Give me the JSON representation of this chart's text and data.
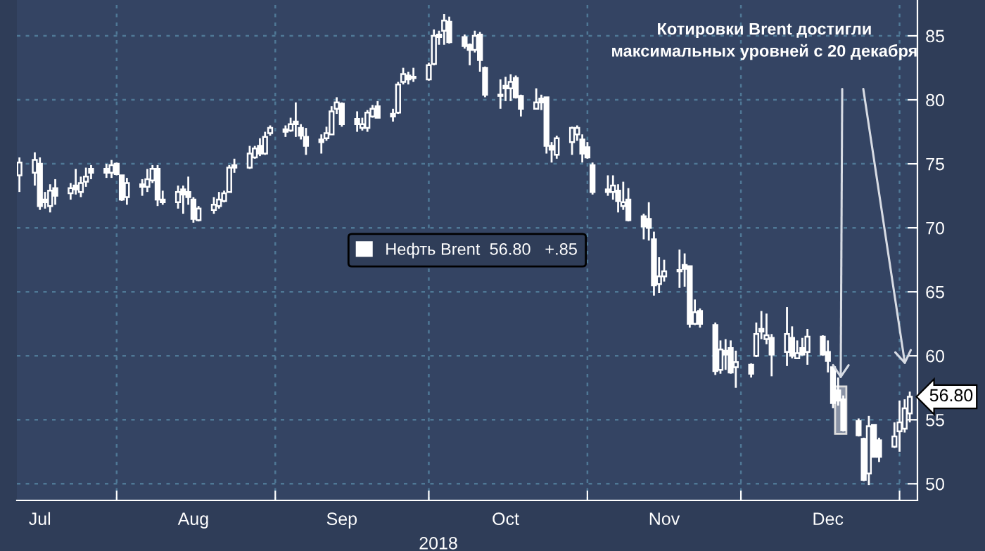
{
  "chart_data": {
    "type": "candlestick",
    "x": [
      "2018-07-13",
      "2018-07-16",
      "2018-07-17",
      "2018-07-18",
      "2018-07-19",
      "2018-07-20",
      "2018-07-23",
      "2018-07-24",
      "2018-07-25",
      "2018-07-26",
      "2018-07-27",
      "2018-07-30",
      "2018-07-31",
      "2018-08-01",
      "2018-08-02",
      "2018-08-03",
      "2018-08-06",
      "2018-08-07",
      "2018-08-08",
      "2018-08-09",
      "2018-08-10",
      "2018-08-13",
      "2018-08-14",
      "2018-08-15",
      "2018-08-16",
      "2018-08-17",
      "2018-08-20",
      "2018-08-21",
      "2018-08-22",
      "2018-08-23",
      "2018-08-24",
      "2018-08-27",
      "2018-08-28",
      "2018-08-29",
      "2018-08-30",
      "2018-08-31",
      "2018-09-03",
      "2018-09-04",
      "2018-09-05",
      "2018-09-06",
      "2018-09-07",
      "2018-09-10",
      "2018-09-11",
      "2018-09-12",
      "2018-09-13",
      "2018-09-14",
      "2018-09-17",
      "2018-09-18",
      "2018-09-19",
      "2018-09-20",
      "2018-09-21",
      "2018-09-24",
      "2018-09-25",
      "2018-09-26",
      "2018-09-27",
      "2018-09-28",
      "2018-10-01",
      "2018-10-02",
      "2018-10-03",
      "2018-10-04",
      "2018-10-05",
      "2018-10-08",
      "2018-10-09",
      "2018-10-10",
      "2018-10-11",
      "2018-10-12",
      "2018-10-15",
      "2018-10-16",
      "2018-10-17",
      "2018-10-18",
      "2018-10-19",
      "2018-10-22",
      "2018-10-23",
      "2018-10-24",
      "2018-10-25",
      "2018-10-26",
      "2018-10-29",
      "2018-10-30",
      "2018-10-31",
      "2018-11-01",
      "2018-11-02",
      "2018-11-05",
      "2018-11-06",
      "2018-11-07",
      "2018-11-08",
      "2018-11-09",
      "2018-11-12",
      "2018-11-13",
      "2018-11-14",
      "2018-11-15",
      "2018-11-16",
      "2018-11-19",
      "2018-11-20",
      "2018-11-21",
      "2018-11-22",
      "2018-11-23",
      "2018-11-26",
      "2018-11-27",
      "2018-11-28",
      "2018-11-29",
      "2018-11-30",
      "2018-12-03",
      "2018-12-04",
      "2018-12-05",
      "2018-12-06",
      "2018-12-07",
      "2018-12-10",
      "2018-12-11",
      "2018-12-12",
      "2018-12-13",
      "2018-12-14",
      "2018-12-17",
      "2018-12-18",
      "2018-12-19",
      "2018-12-20",
      "2018-12-21",
      "2018-12-24",
      "2018-12-25",
      "2018-12-26",
      "2018-12-27",
      "2018-12-28",
      "2018-12-31",
      "2019-01-01",
      "2019-01-02",
      "2019-01-03"
    ],
    "series": [
      {
        "name": "Нефть Brent  56.80   +.85",
        "color": "#ffffff",
        "ohlc": [
          [
            74.1,
            75.5,
            72.8,
            75.1
          ],
          [
            74.3,
            75.9,
            73.3,
            75.3
          ],
          [
            75.0,
            75.5,
            71.4,
            71.7
          ],
          [
            72.2,
            72.8,
            71.5,
            72.0
          ],
          [
            71.7,
            73.4,
            71.2,
            72.9
          ],
          [
            73.1,
            73.8,
            71.8,
            72.5
          ],
          [
            72.7,
            73.5,
            72.2,
            73.1
          ],
          [
            73.3,
            74.6,
            72.6,
            73.0
          ],
          [
            72.8,
            74.0,
            72.4,
            73.5
          ],
          [
            73.6,
            74.7,
            73.2,
            74.0
          ],
          [
            74.6,
            74.9,
            73.8,
            74.3
          ],
          [
            74.6,
            75.0,
            73.9,
            74.3
          ],
          [
            74.3,
            75.3,
            73.9,
            74.9
          ],
          [
            75.0,
            75.1,
            74.1,
            74.2
          ],
          [
            74.1,
            74.1,
            72.1,
            72.2
          ],
          [
            72.4,
            73.9,
            71.8,
            73.5
          ],
          [
            73.4,
            73.8,
            72.5,
            73.2
          ],
          [
            73.2,
            74.6,
            72.8,
            73.8
          ],
          [
            73.7,
            74.9,
            73.5,
            74.6
          ],
          [
            74.6,
            74.9,
            71.7,
            72.2
          ],
          [
            72.2,
            72.9,
            71.8,
            72.0
          ],
          [
            72.0,
            73.3,
            71.5,
            72.8
          ],
          [
            73.0,
            73.3,
            71.1,
            72.6
          ],
          [
            72.8,
            74.0,
            71.8,
            72.4
          ],
          [
            72.2,
            72.4,
            70.4,
            70.7
          ],
          [
            70.6,
            71.7,
            70.5,
            71.5
          ],
          [
            71.4,
            72.4,
            71.1,
            71.8
          ],
          [
            71.7,
            72.8,
            71.5,
            72.2
          ],
          [
            72.1,
            72.9,
            72.0,
            72.7
          ],
          [
            72.8,
            74.9,
            72.8,
            74.7
          ],
          [
            74.9,
            75.4,
            74.3,
            74.7
          ],
          [
            74.7,
            76.4,
            74.6,
            75.8
          ],
          [
            75.5,
            76.4,
            75.4,
            76.2
          ],
          [
            76.4,
            77.0,
            75.6,
            75.8
          ],
          [
            75.8,
            77.5,
            75.7,
            77.1
          ],
          [
            77.4,
            78.0,
            77.2,
            77.8
          ],
          [
            77.7,
            78.0,
            77.1,
            77.5
          ],
          [
            77.6,
            78.6,
            77.5,
            78.1
          ],
          [
            78.3,
            79.8,
            77.1,
            78.1
          ],
          [
            77.8,
            78.1,
            76.9,
            77.2
          ],
          [
            77.1,
            77.8,
            75.7,
            76.4
          ],
          [
            76.9,
            77.3,
            75.8,
            76.7
          ],
          [
            77.0,
            77.9,
            76.8,
            77.4
          ],
          [
            77.3,
            79.5,
            77.3,
            79.1
          ],
          [
            79.3,
            80.2,
            78.9,
            79.8
          ],
          [
            79.7,
            79.8,
            77.9,
            78.1
          ],
          [
            78.5,
            79.1,
            77.5,
            78.1
          ],
          [
            77.8,
            78.6,
            77.6,
            78.1
          ],
          [
            77.8,
            79.2,
            77.5,
            79.0
          ],
          [
            78.7,
            79.6,
            78.6,
            79.3
          ],
          [
            79.5,
            79.9,
            78.6,
            78.6
          ],
          [
            78.9,
            79.3,
            78.3,
            78.7
          ],
          [
            79.0,
            81.4,
            78.9,
            81.2
          ],
          [
            81.4,
            82.5,
            81.2,
            82.0
          ],
          [
            81.9,
            82.2,
            81.2,
            81.6
          ],
          [
            81.8,
            82.5,
            81.4,
            81.7
          ],
          [
            81.6,
            82.9,
            81.5,
            82.7
          ],
          [
            82.8,
            85.5,
            82.7,
            85.0
          ],
          [
            85.1,
            85.4,
            84.3,
            84.9
          ],
          [
            85.4,
            86.7,
            84.3,
            86.2
          ],
          [
            86.1,
            86.5,
            84.4,
            84.5
          ],
          [
            84.9,
            85.1,
            84.0,
            84.2
          ],
          [
            84.3,
            84.4,
            82.7,
            83.9
          ],
          [
            83.9,
            85.4,
            83.7,
            85.0
          ],
          [
            85.1,
            85.3,
            82.2,
            83.1
          ],
          [
            82.5,
            82.6,
            80.2,
            80.4
          ],
          [
            80.4,
            81.6,
            79.3,
            80.3
          ],
          [
            81.1,
            81.8,
            79.9,
            80.9
          ],
          [
            80.9,
            82.0,
            79.9,
            81.4
          ],
          [
            81.7,
            81.9,
            80.1,
            80.2
          ],
          [
            80.3,
            80.4,
            78.7,
            79.3
          ],
          [
            79.3,
            80.9,
            79.3,
            79.8
          ],
          [
            80.1,
            80.4,
            79.2,
            79.8
          ],
          [
            80.2,
            80.2,
            75.8,
            76.4
          ],
          [
            76.4,
            76.7,
            75.1,
            76.1
          ],
          [
            75.7,
            77.2,
            75.4,
            77.0
          ],
          [
            76.7,
            77.9,
            75.7,
            77.8
          ],
          [
            77.3,
            78.0,
            76.8,
            77.8
          ],
          [
            76.9,
            77.3,
            75.1,
            75.8
          ],
          [
            76.3,
            76.7,
            75.4,
            75.5
          ],
          [
            74.9,
            75.1,
            72.6,
            72.8
          ],
          [
            73.0,
            74.1,
            72.5,
            72.8
          ],
          [
            72.8,
            74.1,
            72.2,
            73.3
          ],
          [
            72.9,
            73.4,
            71.2,
            72.1
          ],
          [
            71.7,
            73.6,
            71.4,
            72.0
          ],
          [
            72.2,
            73.1,
            70.5,
            70.6
          ],
          [
            70.9,
            71.1,
            69.1,
            70.1
          ],
          [
            70.7,
            72.0,
            69.0,
            70.0
          ],
          [
            69.1,
            69.7,
            64.7,
            65.5
          ],
          [
            65.6,
            67.7,
            64.9,
            66.2
          ],
          [
            66.2,
            67.5,
            65.8,
            66.6
          ],
          [
            66.7,
            68.3,
            65.3,
            66.6
          ],
          [
            67.1,
            68.0,
            65.4,
            66.8
          ],
          [
            67.0,
            67.0,
            62.2,
            62.5
          ],
          [
            62.5,
            64.4,
            62.4,
            63.4
          ],
          [
            63.5,
            63.7,
            62.2,
            62.5
          ],
          [
            62.4,
            62.6,
            58.5,
            58.8
          ],
          [
            58.9,
            61.2,
            58.6,
            60.5
          ],
          [
            60.4,
            61.3,
            58.9,
            60.1
          ],
          [
            60.6,
            61.2,
            58.6,
            58.7
          ],
          [
            59.1,
            60.4,
            57.5,
            59.5
          ],
          [
            59.3,
            59.4,
            58.3,
            58.6
          ],
          [
            60.0,
            62.6,
            59.9,
            61.7
          ],
          [
            62.1,
            63.5,
            61.3,
            61.9
          ],
          [
            61.3,
            63.3,
            60.9,
            61.6
          ],
          [
            61.4,
            61.7,
            58.4,
            60.1
          ],
          [
            60.3,
            63.8,
            59.2,
            61.7
          ],
          [
            61.4,
            62.3,
            59.8,
            60.0
          ],
          [
            59.8,
            61.2,
            59.8,
            60.2
          ],
          [
            60.6,
            61.4,
            60.0,
            60.1
          ],
          [
            60.3,
            62.1,
            59.3,
            61.5
          ],
          [
            61.5,
            61.6,
            60.0,
            60.1
          ],
          [
            60.3,
            61.2,
            58.7,
            59.6
          ],
          [
            59.1,
            59.2,
            55.9,
            56.3
          ],
          [
            57.3,
            58.3,
            56.1,
            56.5
          ],
          [
            56.6,
            56.9,
            54.1,
            54.2
          ],
          [
            54.9,
            55.1,
            53.7,
            53.8
          ],
          [
            53.5,
            53.6,
            50.2,
            50.3
          ],
          [
            50.8,
            55.3,
            49.9,
            54.5
          ],
          [
            54.6,
            54.6,
            52.1,
            52.1
          ],
          [
            53.4,
            53.6,
            51.7,
            52.1
          ],
          [
            52.9,
            54.8,
            52.8,
            53.7
          ],
          [
            54.1,
            56.5,
            52.5,
            54.8
          ],
          [
            54.3,
            56.6,
            54.0,
            55.9
          ],
          [
            55.5,
            57.2,
            54.8,
            56.8
          ]
        ]
      }
    ],
    "xlim": [
      "2018-07-12T12:00",
      "2019-01-04T12:00"
    ],
    "xticks": [
      {
        "value": "2018-08-01",
        "label": null
      },
      {
        "value": "2018-09-01",
        "label": null
      },
      {
        "value": "2018-10-01",
        "label": null
      },
      {
        "value": "2018-11-01",
        "label": null
      },
      {
        "value": "2018-12-01",
        "label": null
      },
      {
        "value": "2019-01-01",
        "label": null
      },
      {
        "value": "2018-07-17",
        "label": "Jul"
      },
      {
        "value": "2018-08-16",
        "label": "Aug"
      },
      {
        "value": "2018-09-14",
        "label": "Sep"
      },
      {
        "value": "2018-10-16",
        "label": "Oct"
      },
      {
        "value": "2018-11-16",
        "label": "Nov"
      },
      {
        "value": "2018-12-18",
        "label": "Dec"
      }
    ],
    "ylim": [
      48.7,
      87.8
    ],
    "yticks": [
      50,
      55,
      60,
      65,
      70,
      75,
      80,
      85
    ],
    "grid": true,
    "legend": "center",
    "bands": [
      {
        "axis": "x",
        "from": "2018-12-20",
        "to": "2018-12-21",
        "label": null,
        "color": "#8a93a6"
      }
    ],
    "annotations": [
      "Котировки Brent достигли\nмаксимальных уровней с 20 декабря",
      "56.80",
      "2018"
    ]
  }
}
